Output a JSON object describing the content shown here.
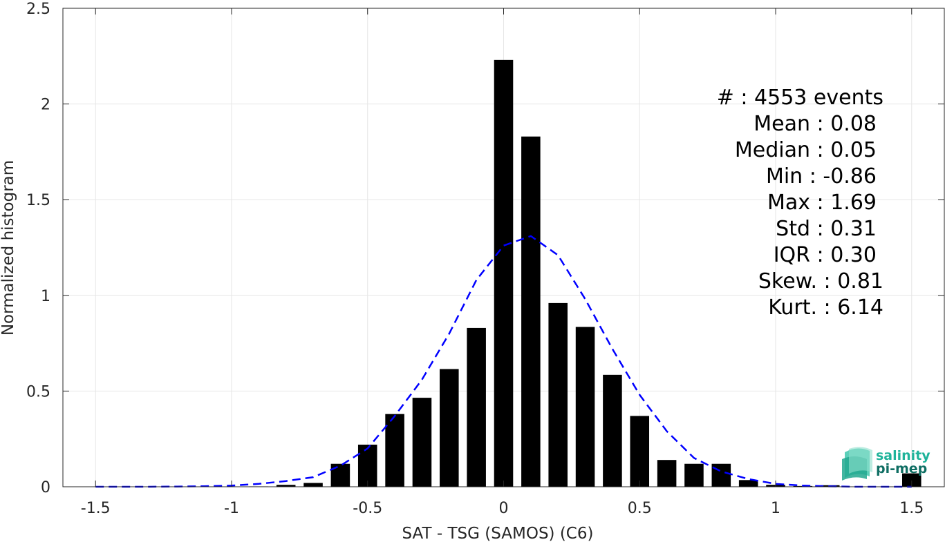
{
  "chart_data": {
    "type": "bar",
    "xlabel": "SAT - TSG (SAMOS) (C6)",
    "ylabel": "Normalized histogram",
    "xlim": [
      -1.62,
      1.62
    ],
    "ylim": [
      0,
      2.5
    ],
    "xticks": [
      -1.5,
      -1,
      -0.5,
      0,
      0.5,
      1,
      1.5
    ],
    "xtick_labels": [
      "-1.5",
      "-1",
      "-0.5",
      "0",
      "0.5",
      "1",
      "1.5"
    ],
    "yticks": [
      0,
      0.5,
      1,
      1.5,
      2,
      2.5
    ],
    "ytick_labels": [
      "0",
      "0.5",
      "1",
      "1.5",
      "2",
      "2.5"
    ],
    "grid": true,
    "bars": {
      "name": "Histogram",
      "color": "#000000",
      "width": 0.07,
      "x": [
        -1.0,
        -0.9,
        -0.8,
        -0.7,
        -0.6,
        -0.5,
        -0.4,
        -0.3,
        -0.2,
        -0.1,
        0.0,
        0.1,
        0.2,
        0.3,
        0.4,
        0.5,
        0.6,
        0.7,
        0.8,
        0.9,
        1.0,
        1.1,
        1.2,
        1.3,
        1.4,
        1.5
      ],
      "values": [
        0.0,
        0.002,
        0.01,
        0.02,
        0.12,
        0.22,
        0.38,
        0.465,
        0.615,
        0.83,
        2.23,
        1.83,
        0.96,
        0.835,
        0.585,
        0.37,
        0.14,
        0.12,
        0.12,
        0.035,
        0.01,
        0.004,
        0.008,
        0.0,
        0.0,
        0.07
      ]
    },
    "fit_curve": {
      "name": "Fit",
      "color": "#0000ff",
      "style": "dashed",
      "x": [
        -1.5,
        -1.4,
        -1.3,
        -1.2,
        -1.1,
        -1.0,
        -0.9,
        -0.8,
        -0.7,
        -0.6,
        -0.5,
        -0.4,
        -0.3,
        -0.2,
        -0.1,
        0.0,
        0.1,
        0.2,
        0.3,
        0.4,
        0.5,
        0.6,
        0.7,
        0.8,
        0.9,
        1.0,
        1.1,
        1.2,
        1.3,
        1.4,
        1.5
      ],
      "y": [
        0.0,
        0.0,
        0.0,
        0.001,
        0.003,
        0.006,
        0.015,
        0.03,
        0.05,
        0.11,
        0.2,
        0.37,
        0.56,
        0.8,
        1.08,
        1.26,
        1.31,
        1.21,
        0.98,
        0.72,
        0.48,
        0.29,
        0.15,
        0.08,
        0.04,
        0.015,
        0.006,
        0.002,
        0.0,
        0.0,
        0.0
      ]
    }
  },
  "stats": [
    {
      "label": "#  : 4553 events",
      "anchor": "end"
    },
    {
      "label": "Mean : 0.08",
      "anchor": "end"
    },
    {
      "label": "Median : 0.05",
      "anchor": "end"
    },
    {
      "label": "Min : -0.86",
      "anchor": "end"
    },
    {
      "label": "Max : 1.69",
      "anchor": "end"
    },
    {
      "label": "Std : 0.31",
      "anchor": "end"
    },
    {
      "label": "IQR : 0.30",
      "anchor": "end"
    },
    {
      "label": "Skew. : 0.81",
      "anchor": "end"
    },
    {
      "label": "Kurt. : 6.14",
      "anchor": "end"
    }
  ],
  "logo": {
    "line1": "salinity",
    "line2": "pi-mep",
    "color1": "#1fb39a",
    "color2": "#0f6e63"
  }
}
